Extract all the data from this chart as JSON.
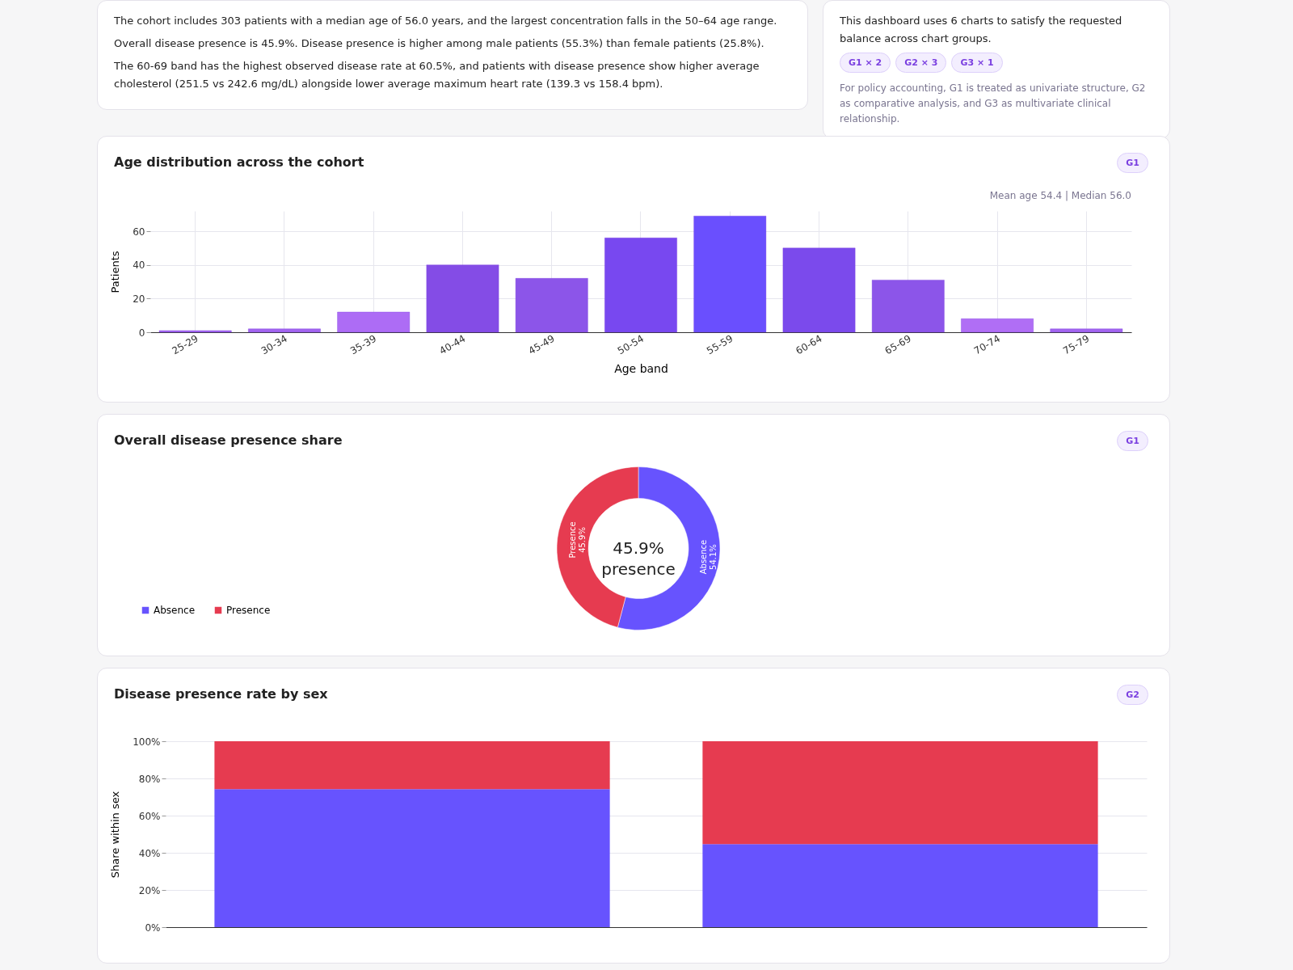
{
  "chart_data": [
    {
      "type": "other",
      "annotations": [
        "The cohort includes 303 patients with a median age of 56.0 years, and the largest concentration falls in the 50–64 age range.",
        "Overall disease presence is 45.9%. Disease presence is higher among male patients (55.3%) than female patients (25.8%).",
        "The 60-69 band has the highest observed disease rate at 60.5%, and patients with disease presence show higher average cholesterol (251.5 vs 242.6 mg/dL) alongside lower average maximum heart rate (139.3 vs 158.4 bpm)."
      ]
    },
    {
      "type": "other",
      "annotations": [
        "This dashboard uses 6 charts to satisfy the requested balance across chart groups.",
        "G1 × 2",
        "G2 × 3",
        "G3 × 1",
        "For policy accounting, G1 is treated as univariate structure, G2 as comparative analysis, and G3 as multivariate clinical relationship."
      ]
    },
    {
      "type": "bar",
      "title": "Age distribution across the cohort",
      "xlabel": "Age band",
      "ylabel": "Patients",
      "annotations": [
        "G1",
        "Mean age 54.4 | Median 56.0"
      ],
      "categories": [
        "25-29",
        "30-34",
        "35-39",
        "40-44",
        "45-49",
        "50-54",
        "55-59",
        "60-64",
        "65-69",
        "70-74",
        "75-79"
      ],
      "values": [
        1,
        2,
        12,
        40,
        32,
        56,
        69,
        50,
        31,
        8,
        2
      ],
      "colors": [
        "#a366f0",
        "#a366f0",
        "#ad6cf5",
        "#844ce6",
        "#8c55e9",
        "#7848f0",
        "#6a4ffe",
        "#7b4aec",
        "#8c55e9",
        "#b06ef5",
        "#a366f0"
      ],
      "ylim": [
        0,
        72
      ],
      "yticks": [
        0,
        20,
        40,
        60
      ],
      "grid": true
    },
    {
      "type": "donut",
      "title": "Overall disease presence share",
      "annotations": [
        "G1",
        "45.9%\npresence"
      ],
      "categories": [
        "Absence",
        "Presence"
      ],
      "values": [
        54.1,
        45.9
      ],
      "colors": [
        "#6753fe",
        "#e63b50"
      ],
      "value_labels": [
        "54.1%",
        "45.9%"
      ],
      "legend": "bottom left"
    },
    {
      "type": "bar",
      "title": "Disease presence rate by sex",
      "ylabel": "Share within sex",
      "annotations": [
        "G2"
      ],
      "categories": [
        null,
        null
      ],
      "stacked": true,
      "series": [
        {
          "color": "#6753fe",
          "values": [
            74.2,
            44.7
          ]
        },
        {
          "color": "#e63b50",
          "values": [
            25.8,
            55.3
          ]
        }
      ],
      "ylim": [
        0,
        100
      ],
      "yticks": [
        {
          "value": 0,
          "label": "0%"
        },
        {
          "value": 20,
          "label": "20%"
        },
        {
          "value": 40,
          "label": "40%"
        },
        {
          "value": 60,
          "label": "60%"
        },
        {
          "value": 80,
          "label": "80%"
        },
        {
          "value": 100,
          "label": "100%"
        }
      ],
      "grid": "y"
    }
  ]
}
